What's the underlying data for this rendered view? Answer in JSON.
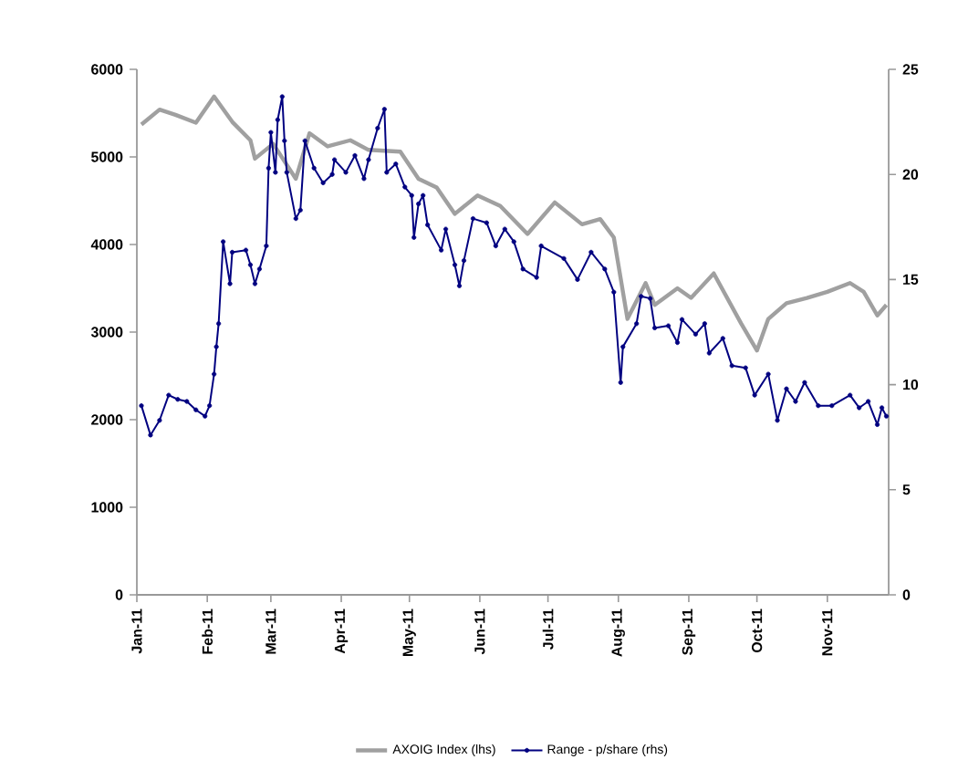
{
  "chart_data": {
    "type": "line",
    "legend": "bottom",
    "grid": false,
    "xlim": [
      "2011-01-01",
      "2011-11-28"
    ],
    "xticks": [
      {
        "value": "2011-01-01",
        "label": "Jan-11"
      },
      {
        "value": "2011-02-01",
        "label": "Feb-11"
      },
      {
        "value": "2011-03-01",
        "label": "Mar-11"
      },
      {
        "value": "2011-04-01",
        "label": "Apr-11"
      },
      {
        "value": "2011-05-01",
        "label": "May-11"
      },
      {
        "value": "2011-06-01",
        "label": "Jun-11"
      },
      {
        "value": "2011-07-01",
        "label": "Jul-11"
      },
      {
        "value": "2011-08-01",
        "label": "Aug-11"
      },
      {
        "value": "2011-09-01",
        "label": "Sep-11"
      },
      {
        "value": "2011-10-01",
        "label": "Oct-11"
      },
      {
        "value": "2011-11-01",
        "label": "Nov-11"
      }
    ],
    "ylim": [
      0,
      6000
    ],
    "yticks": [
      0,
      1000,
      2000,
      3000,
      4000,
      5000,
      6000
    ],
    "y2lim": [
      0,
      25
    ],
    "y2ticks": [
      0,
      5,
      10,
      15,
      20,
      25
    ],
    "series": [
      {
        "name": "AXOIG Index  (lhs)",
        "color": "#a0a0a0",
        "marker": "none",
        "x": [
          "2011-01-03",
          "2011-01-11",
          "2011-01-18",
          "2011-01-27",
          "2011-02-04",
          "2011-02-12",
          "2011-02-20",
          "2011-02-22",
          "2011-03-02",
          "2011-03-12",
          "2011-03-18",
          "2011-03-26",
          "2011-04-05",
          "2011-04-13",
          "2011-04-27",
          "2011-05-05",
          "2011-05-13",
          "2011-05-21",
          "2011-05-31",
          "2011-06-10",
          "2011-06-22",
          "2011-07-04",
          "2011-07-16",
          "2011-07-24",
          "2011-07-30",
          "2011-08-05",
          "2011-08-13",
          "2011-08-17",
          "2011-08-27",
          "2011-09-02",
          "2011-09-12",
          "2011-09-24",
          "2011-10-01",
          "2011-10-06",
          "2011-10-14",
          "2011-10-23",
          "2011-11-01",
          "2011-11-11",
          "2011-11-17",
          "2011-11-23",
          "2011-11-27"
        ],
        "values": [
          5370,
          5540,
          5480,
          5390,
          5690,
          5400,
          5190,
          4980,
          5150,
          4750,
          5270,
          5120,
          5190,
          5080,
          5060,
          4750,
          4650,
          4350,
          4560,
          4440,
          4120,
          4480,
          4230,
          4290,
          4080,
          3150,
          3560,
          3310,
          3500,
          3390,
          3670,
          3100,
          2790,
          3150,
          3330,
          3390,
          3460,
          3560,
          3460,
          3190,
          3310
        ]
      },
      {
        "name": "Range - p/share (rhs)",
        "color": "#000080",
        "marker": "circle",
        "axis": "y2",
        "x": [
          "2011-01-03",
          "2011-01-07",
          "2011-01-11",
          "2011-01-15",
          "2011-01-19",
          "2011-01-23",
          "2011-01-27",
          "2011-01-31",
          "2011-02-02",
          "2011-02-04",
          "2011-02-05",
          "2011-02-06",
          "2011-02-08",
          "2011-02-11",
          "2011-02-12",
          "2011-02-18",
          "2011-02-20",
          "2011-02-22",
          "2011-02-24",
          "2011-02-27",
          "2011-02-28",
          "2011-03-01",
          "2011-03-03",
          "2011-03-04",
          "2011-03-06",
          "2011-03-07",
          "2011-03-08",
          "2011-03-12",
          "2011-03-14",
          "2011-03-16",
          "2011-03-20",
          "2011-03-24",
          "2011-03-28",
          "2011-03-29",
          "2011-04-03",
          "2011-04-07",
          "2011-04-11",
          "2011-04-13",
          "2011-04-17",
          "2011-04-20",
          "2011-04-21",
          "2011-04-25",
          "2011-04-29",
          "2011-05-02",
          "2011-05-03",
          "2011-05-05",
          "2011-05-07",
          "2011-05-09",
          "2011-05-15",
          "2011-05-17",
          "2011-05-21",
          "2011-05-23",
          "2011-05-25",
          "2011-05-29",
          "2011-06-04",
          "2011-06-08",
          "2011-06-12",
          "2011-06-16",
          "2011-06-20",
          "2011-06-26",
          "2011-06-28",
          "2011-07-08",
          "2011-07-14",
          "2011-07-20",
          "2011-07-26",
          "2011-07-30",
          "2011-08-02",
          "2011-08-03",
          "2011-08-09",
          "2011-08-11",
          "2011-08-15",
          "2011-08-17",
          "2011-08-23",
          "2011-08-27",
          "2011-08-29",
          "2011-09-04",
          "2011-09-08",
          "2011-09-10",
          "2011-09-16",
          "2011-09-20",
          "2011-09-26",
          "2011-09-30",
          "2011-10-06",
          "2011-10-10",
          "2011-10-14",
          "2011-10-18",
          "2011-10-22",
          "2011-10-28",
          "2011-11-03",
          "2011-11-11",
          "2011-11-15",
          "2011-11-19",
          "2011-11-23",
          "2011-11-25",
          "2011-11-27"
        ],
        "values": [
          9.0,
          7.6,
          8.3,
          9.5,
          9.3,
          9.2,
          8.8,
          8.5,
          9.0,
          10.5,
          11.8,
          12.9,
          16.8,
          14.8,
          16.3,
          16.4,
          15.7,
          14.8,
          15.5,
          16.6,
          20.3,
          22.0,
          20.1,
          22.6,
          23.7,
          21.6,
          20.1,
          17.9,
          18.3,
          21.6,
          20.3,
          19.6,
          20.0,
          20.7,
          20.1,
          20.9,
          19.8,
          20.7,
          22.2,
          23.1,
          20.1,
          20.5,
          19.4,
          19.0,
          17.0,
          18.6,
          19.0,
          17.6,
          16.4,
          17.4,
          15.7,
          14.7,
          15.9,
          17.9,
          17.7,
          16.6,
          17.4,
          16.8,
          15.5,
          15.1,
          16.6,
          16.0,
          15.0,
          16.3,
          15.5,
          14.4,
          10.1,
          11.8,
          12.9,
          14.2,
          14.1,
          12.7,
          12.8,
          12.0,
          13.1,
          12.4,
          12.9,
          11.5,
          12.2,
          10.9,
          10.8,
          9.5,
          10.5,
          8.3,
          9.8,
          9.2,
          10.1,
          9.0,
          9.0,
          9.5,
          8.9,
          9.2,
          8.1,
          8.9,
          8.5
        ]
      }
    ]
  }
}
